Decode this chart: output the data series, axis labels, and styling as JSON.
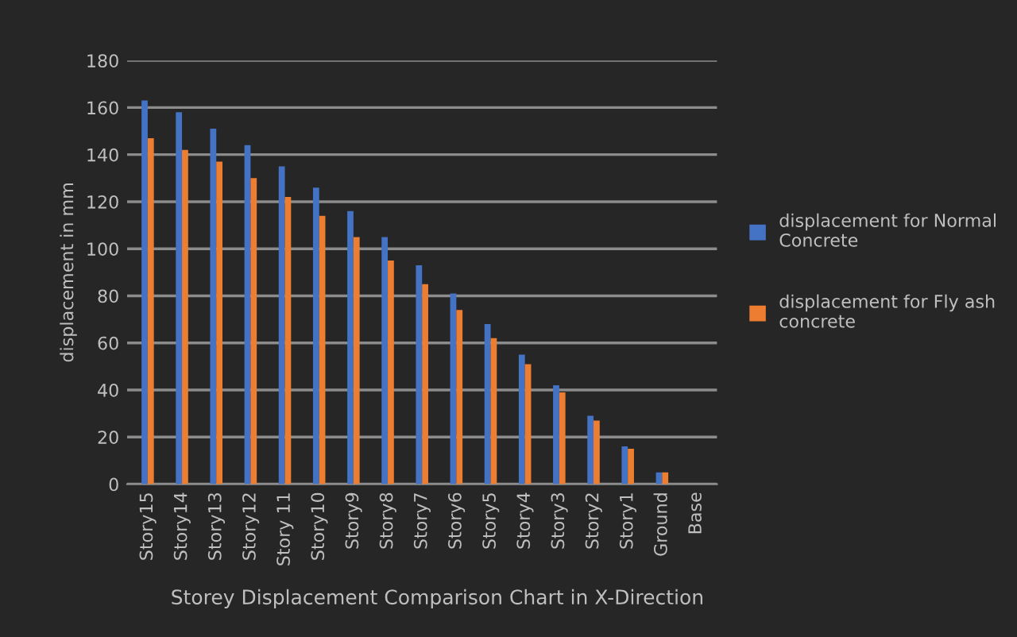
{
  "chart_data": {
    "type": "bar",
    "title": "Storey Displacement Comparison Chart in X-Direction",
    "ylabel": "displacement in mm",
    "categories": [
      "Story15",
      "Story14",
      "Story13",
      "Story12",
      "Story 11",
      "Story10",
      "Story9",
      "Story8",
      "Story7",
      "Story6",
      "Story5",
      "Story4",
      "Story3",
      "Story2",
      "Story1",
      "Ground",
      "Base"
    ],
    "series": [
      {
        "name": "displacement for Normal Concrete",
        "color": "#4472c4",
        "values": [
          163,
          158,
          151,
          144,
          135,
          126,
          116,
          105,
          93,
          81,
          68,
          55,
          42,
          29,
          16,
          5,
          0
        ]
      },
      {
        "name": "displacement for Fly ash concrete",
        "color": "#ed7d31",
        "values": [
          147,
          142,
          137,
          130,
          122,
          114,
          105,
          95,
          85,
          74,
          62,
          51,
          39,
          27,
          15,
          5,
          0
        ]
      }
    ],
    "ylim": [
      0,
      180
    ],
    "yticks": [
      0,
      20,
      40,
      60,
      80,
      100,
      120,
      140,
      160,
      180
    ],
    "grid": "y",
    "legend": "right"
  }
}
